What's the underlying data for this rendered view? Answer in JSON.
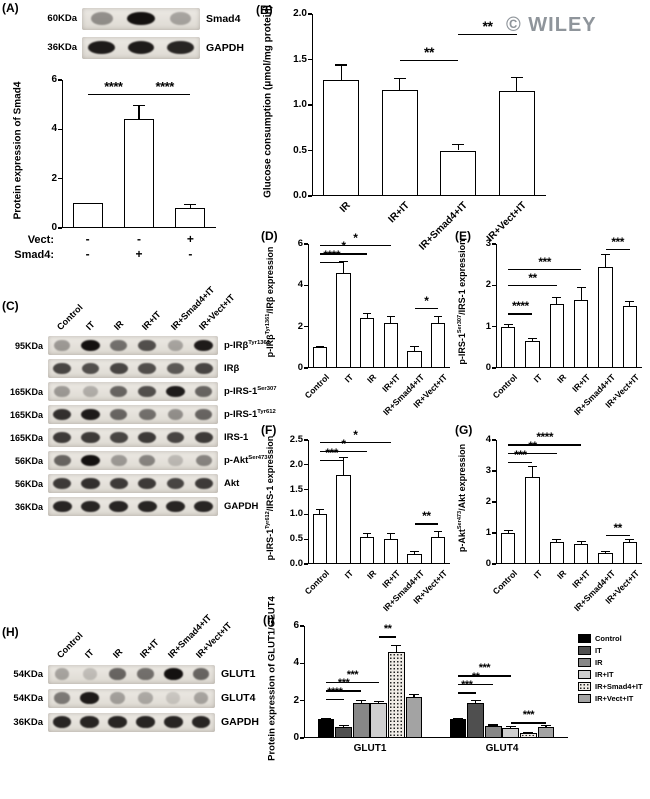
{
  "panelA": {
    "label": "(A)",
    "blot": {
      "rows": [
        {
          "kda": "60KDa",
          "protein_parts": [
            {
              "t": "Smad4"
            }
          ],
          "bands": [
            0.4,
            1.0,
            0.3
          ]
        },
        {
          "kda": "36KDa",
          "protein_parts": [
            {
              "t": "GAPDH"
            }
          ],
          "bands": [
            0.95,
            0.95,
            0.9
          ]
        }
      ]
    },
    "chart": {
      "type": "bar",
      "ylabel_parts": [
        {
          "t": "Protein expression of Smad4"
        }
      ],
      "ylim": [
        0,
        6
      ],
      "yticks": [
        0,
        2,
        4,
        6
      ],
      "values": [
        1.0,
        4.4,
        0.8
      ],
      "errors": [
        0,
        0.55,
        0.15
      ],
      "sig": [
        {
          "from": 0,
          "to": 1,
          "label": "****",
          "y": 5.45
        },
        {
          "from": 1,
          "to": 2,
          "label": "****",
          "y": 5.45
        }
      ],
      "xmatrix": [
        {
          "label": "Vect:",
          "values": [
            "-",
            "-",
            "+"
          ]
        },
        {
          "label": "Smad4:",
          "values": [
            "-",
            "+",
            "-"
          ]
        }
      ]
    }
  },
  "panelB": {
    "label": "(B)",
    "watermark": "© WILEY",
    "chart": {
      "type": "bar",
      "ylabel_parts": [
        {
          "t": "Glucose consumption (μmol/mg protein)"
        }
      ],
      "ylim": [
        0,
        2.0
      ],
      "yticks": [
        0,
        0.5,
        1.0,
        1.5,
        2.0
      ],
      "categories": [
        "IR",
        "IR+IT",
        "IR+Smad4+IT",
        "IR+Vect+IT"
      ],
      "values": [
        1.27,
        1.17,
        0.5,
        1.15
      ],
      "errors": [
        0.17,
        0.12,
        0.07,
        0.15
      ],
      "sig": [
        {
          "from": 1,
          "to": 2,
          "label": "**",
          "y": 1.5
        },
        {
          "from": 2,
          "to": 3,
          "label": "**",
          "y": 1.78
        }
      ]
    }
  },
  "panelC": {
    "label": "(C)",
    "columns": [
      "Control",
      "IT",
      "IR",
      "IR+IT",
      "IR+Smad4+IT",
      "IR+Vect+IT"
    ],
    "rows": [
      {
        "kda": "95KDa",
        "protein_parts": [
          {
            "t": "p-IRβ"
          },
          {
            "t": "Tyr1361",
            "sup": true
          }
        ],
        "bands": [
          0.35,
          1.0,
          0.55,
          0.7,
          0.3,
          0.95
        ]
      },
      {
        "kda": "",
        "protein_parts": [
          {
            "t": "IRβ"
          }
        ],
        "bands": [
          0.75,
          0.7,
          0.75,
          0.7,
          0.65,
          0.75
        ]
      },
      {
        "kda": "165KDa",
        "protein_parts": [
          {
            "t": "p-IRS-1"
          },
          {
            "t": "Ser307",
            "sup": true
          }
        ],
        "bands": [
          0.35,
          0.25,
          0.6,
          0.7,
          0.95,
          0.6
        ]
      },
      {
        "kda": "165KDa",
        "protein_parts": [
          {
            "t": "p-IRS-1"
          },
          {
            "t": "Tyr612",
            "sup": true
          }
        ],
        "bands": [
          0.85,
          0.95,
          0.6,
          0.55,
          0.4,
          0.6
        ]
      },
      {
        "kda": "165KDa",
        "protein_parts": [
          {
            "t": "IRS-1"
          }
        ],
        "bands": [
          0.8,
          0.8,
          0.75,
          0.8,
          0.75,
          0.8
        ]
      },
      {
        "kda": "56KDa",
        "protein_parts": [
          {
            "t": "p-Akt"
          },
          {
            "t": "Ser473",
            "sup": true
          }
        ],
        "bands": [
          0.6,
          1.0,
          0.35,
          0.45,
          0.2,
          0.45
        ]
      },
      {
        "kda": "56KDa",
        "protein_parts": [
          {
            "t": "Akt"
          }
        ],
        "bands": [
          0.8,
          0.85,
          0.8,
          0.8,
          0.75,
          0.8
        ]
      },
      {
        "kda": "36KDa",
        "protein_parts": [
          {
            "t": "GAPDH"
          }
        ],
        "bands": [
          0.9,
          0.9,
          0.9,
          0.9,
          0.9,
          0.9
        ]
      }
    ]
  },
  "panelD": {
    "label": "(D)",
    "chart": {
      "type": "bar",
      "ylabel_parts": [
        {
          "t": "p-IRβ"
        },
        {
          "t": "Tyr1361",
          "sup": true
        },
        {
          "t": "/IRβ expression"
        }
      ],
      "ylim": [
        0,
        6
      ],
      "yticks": [
        0,
        2,
        4,
        6
      ],
      "categories": [
        "Control",
        "IT",
        "IR",
        "IR+IT",
        "IR+Smad4+IT",
        "IR+Vect+IT"
      ],
      "values": [
        1.0,
        4.6,
        2.4,
        2.2,
        0.8,
        2.2
      ],
      "errors": [
        0.05,
        0.55,
        0.25,
        0.3,
        0.25,
        0.3
      ],
      "sig": [
        {
          "from": 0,
          "to": 1,
          "label": "****",
          "y": 5.15
        },
        {
          "from": 0,
          "to": 2,
          "label": "*",
          "y": 5.55
        },
        {
          "from": 0,
          "to": 3,
          "label": "*",
          "y": 5.95
        },
        {
          "from": 4,
          "to": 5,
          "label": "*",
          "y": 2.9
        }
      ]
    }
  },
  "panelE": {
    "label": "(E)",
    "chart": {
      "type": "bar",
      "ylabel_parts": [
        {
          "t": "p-IRS-1"
        },
        {
          "t": "Ser307",
          "sup": true
        },
        {
          "t": "/IRS-1 expression"
        }
      ],
      "ylim": [
        0,
        3
      ],
      "yticks": [
        0,
        1,
        2,
        3
      ],
      "categories": [
        "Control",
        "IT",
        "IR",
        "IR+IT",
        "IR+Smad4+IT",
        "IR+Vect+IT"
      ],
      "values": [
        1.0,
        0.65,
        1.55,
        1.65,
        2.45,
        1.5
      ],
      "errors": [
        0.05,
        0.07,
        0.15,
        0.3,
        0.3,
        0.1
      ],
      "sig": [
        {
          "from": 0,
          "to": 1,
          "label": "****",
          "y": 1.32
        },
        {
          "from": 0,
          "to": 2,
          "label": "**",
          "y": 2.02
        },
        {
          "from": 0,
          "to": 3,
          "label": "***",
          "y": 2.4
        },
        {
          "from": 4,
          "to": 5,
          "label": "***",
          "y": 2.88
        }
      ]
    }
  },
  "panelF": {
    "label": "(F)",
    "chart": {
      "type": "bar",
      "ylabel_parts": [
        {
          "t": "p-IRS-1"
        },
        {
          "t": "Tyr612",
          "sup": true
        },
        {
          "t": "/IRS-1 expression"
        }
      ],
      "ylim": [
        0,
        2.5
      ],
      "yticks": [
        0,
        0.5,
        1.0,
        1.5,
        2.0,
        2.5
      ],
      "categories": [
        "Control",
        "IT",
        "IR",
        "IR+IT",
        "IR+Smad4+IT",
        "IR+Vect+IT"
      ],
      "values": [
        1.0,
        1.8,
        0.55,
        0.5,
        0.2,
        0.55
      ],
      "errors": [
        0.1,
        0.35,
        0.07,
        0.12,
        0.05,
        0.1
      ],
      "sig": [
        {
          "from": 0,
          "to": 1,
          "label": "***",
          "y": 2.1
        },
        {
          "from": 0,
          "to": 2,
          "label": "*",
          "y": 2.28
        },
        {
          "from": 0,
          "to": 3,
          "label": "*",
          "y": 2.46
        },
        {
          "from": 4,
          "to": 5,
          "label": "**",
          "y": 0.82
        }
      ]
    }
  },
  "panelG": {
    "label": "(G)",
    "chart": {
      "type": "bar",
      "ylabel_parts": [
        {
          "t": "p-Akt"
        },
        {
          "t": "Ser473",
          "sup": true
        },
        {
          "t": "/Akt expression"
        }
      ],
      "ylim": [
        0,
        4
      ],
      "yticks": [
        0,
        1,
        2,
        3,
        4
      ],
      "categories": [
        "Control",
        "IT",
        "IR",
        "IR+IT",
        "IR+Smad4+IT",
        "IR+Vect+IT"
      ],
      "values": [
        1.0,
        2.8,
        0.7,
        0.65,
        0.35,
        0.7
      ],
      "errors": [
        0.07,
        0.35,
        0.08,
        0.08,
        0.05,
        0.08
      ],
      "sig": [
        {
          "from": 0,
          "to": 1,
          "label": "***",
          "y": 3.3
        },
        {
          "from": 0,
          "to": 2,
          "label": "**",
          "y": 3.58
        },
        {
          "from": 0,
          "to": 3,
          "label": "****",
          "y": 3.86
        },
        {
          "from": 4,
          "to": 5,
          "label": "**",
          "y": 0.95
        }
      ]
    }
  },
  "panelH": {
    "label": "(H)",
    "columns": [
      "Control",
      "IT",
      "IR",
      "IR+IT",
      "IR+Smad4+IT",
      "IR+Vect+IT"
    ],
    "rows": [
      {
        "kda": "54KDa",
        "protein_parts": [
          {
            "t": "GLUT1"
          }
        ],
        "bands": [
          0.3,
          0.18,
          0.6,
          0.55,
          1.0,
          0.6
        ]
      },
      {
        "kda": "54KDa",
        "protein_parts": [
          {
            "t": "GLUT4"
          }
        ],
        "bands": [
          0.5,
          0.95,
          0.32,
          0.28,
          0.14,
          0.3
        ]
      },
      {
        "kda": "36KDa",
        "protein_parts": [
          {
            "t": "GAPDH"
          }
        ],
        "bands": [
          0.9,
          0.9,
          0.9,
          0.9,
          0.9,
          0.9
        ]
      }
    ]
  },
  "panelI": {
    "label": "(I)",
    "chart": {
      "type": "bar",
      "ylabel_parts": [
        {
          "t": "Protein expression of GLUT1/GLUT4"
        }
      ],
      "ylim": [
        0,
        6
      ],
      "yticks": [
        0,
        2,
        4,
        6
      ],
      "groups": [
        "GLUT1",
        "GLUT4"
      ],
      "series": [
        {
          "name": "Control",
          "fill": "#000000",
          "values": [
            1.0,
            1.0
          ],
          "errors": [
            0.05,
            0.05
          ]
        },
        {
          "name": "IT",
          "fill": "#4f4f4f",
          "values": [
            0.6,
            1.9
          ],
          "errors": [
            0.05,
            0.1
          ]
        },
        {
          "name": "IR",
          "fill": "#878787",
          "values": [
            1.9,
            0.65
          ],
          "errors": [
            0.1,
            0.05
          ]
        },
        {
          "name": "IR+IT",
          "fill": "#cfcfcf",
          "values": [
            1.85,
            0.55
          ],
          "errors": [
            0.1,
            0.05
          ]
        },
        {
          "name": "IR+Smad4+IT",
          "fill": "dots",
          "values": [
            4.6,
            0.25
          ],
          "errors": [
            0.35,
            0.05
          ]
        },
        {
          "name": "IR+Vect+IT",
          "fill": "#a3a3a3",
          "values": [
            2.2,
            0.6
          ],
          "errors": [
            0.15,
            0.05
          ]
        }
      ],
      "sig": [
        {
          "group": 0,
          "from": 0,
          "to": 1,
          "label": "****",
          "y": 2.1
        },
        {
          "group": 0,
          "from": 0,
          "to": 2,
          "label": "***",
          "y": 2.55
        },
        {
          "group": 0,
          "from": 0,
          "to": 3,
          "label": "***",
          "y": 3.0
        },
        {
          "group": 0,
          "from": 3,
          "to": 4,
          "label": "**",
          "y": 5.45
        },
        {
          "group": 1,
          "from": 0,
          "to": 1,
          "label": "***",
          "y": 2.45
        },
        {
          "group": 1,
          "from": 0,
          "to": 2,
          "label": "**",
          "y": 2.9
        },
        {
          "group": 1,
          "from": 0,
          "to": 3,
          "label": "***",
          "y": 3.35
        },
        {
          "group": 1,
          "from": 3,
          "to": 5,
          "label": "***",
          "y": 0.85
        }
      ]
    }
  }
}
